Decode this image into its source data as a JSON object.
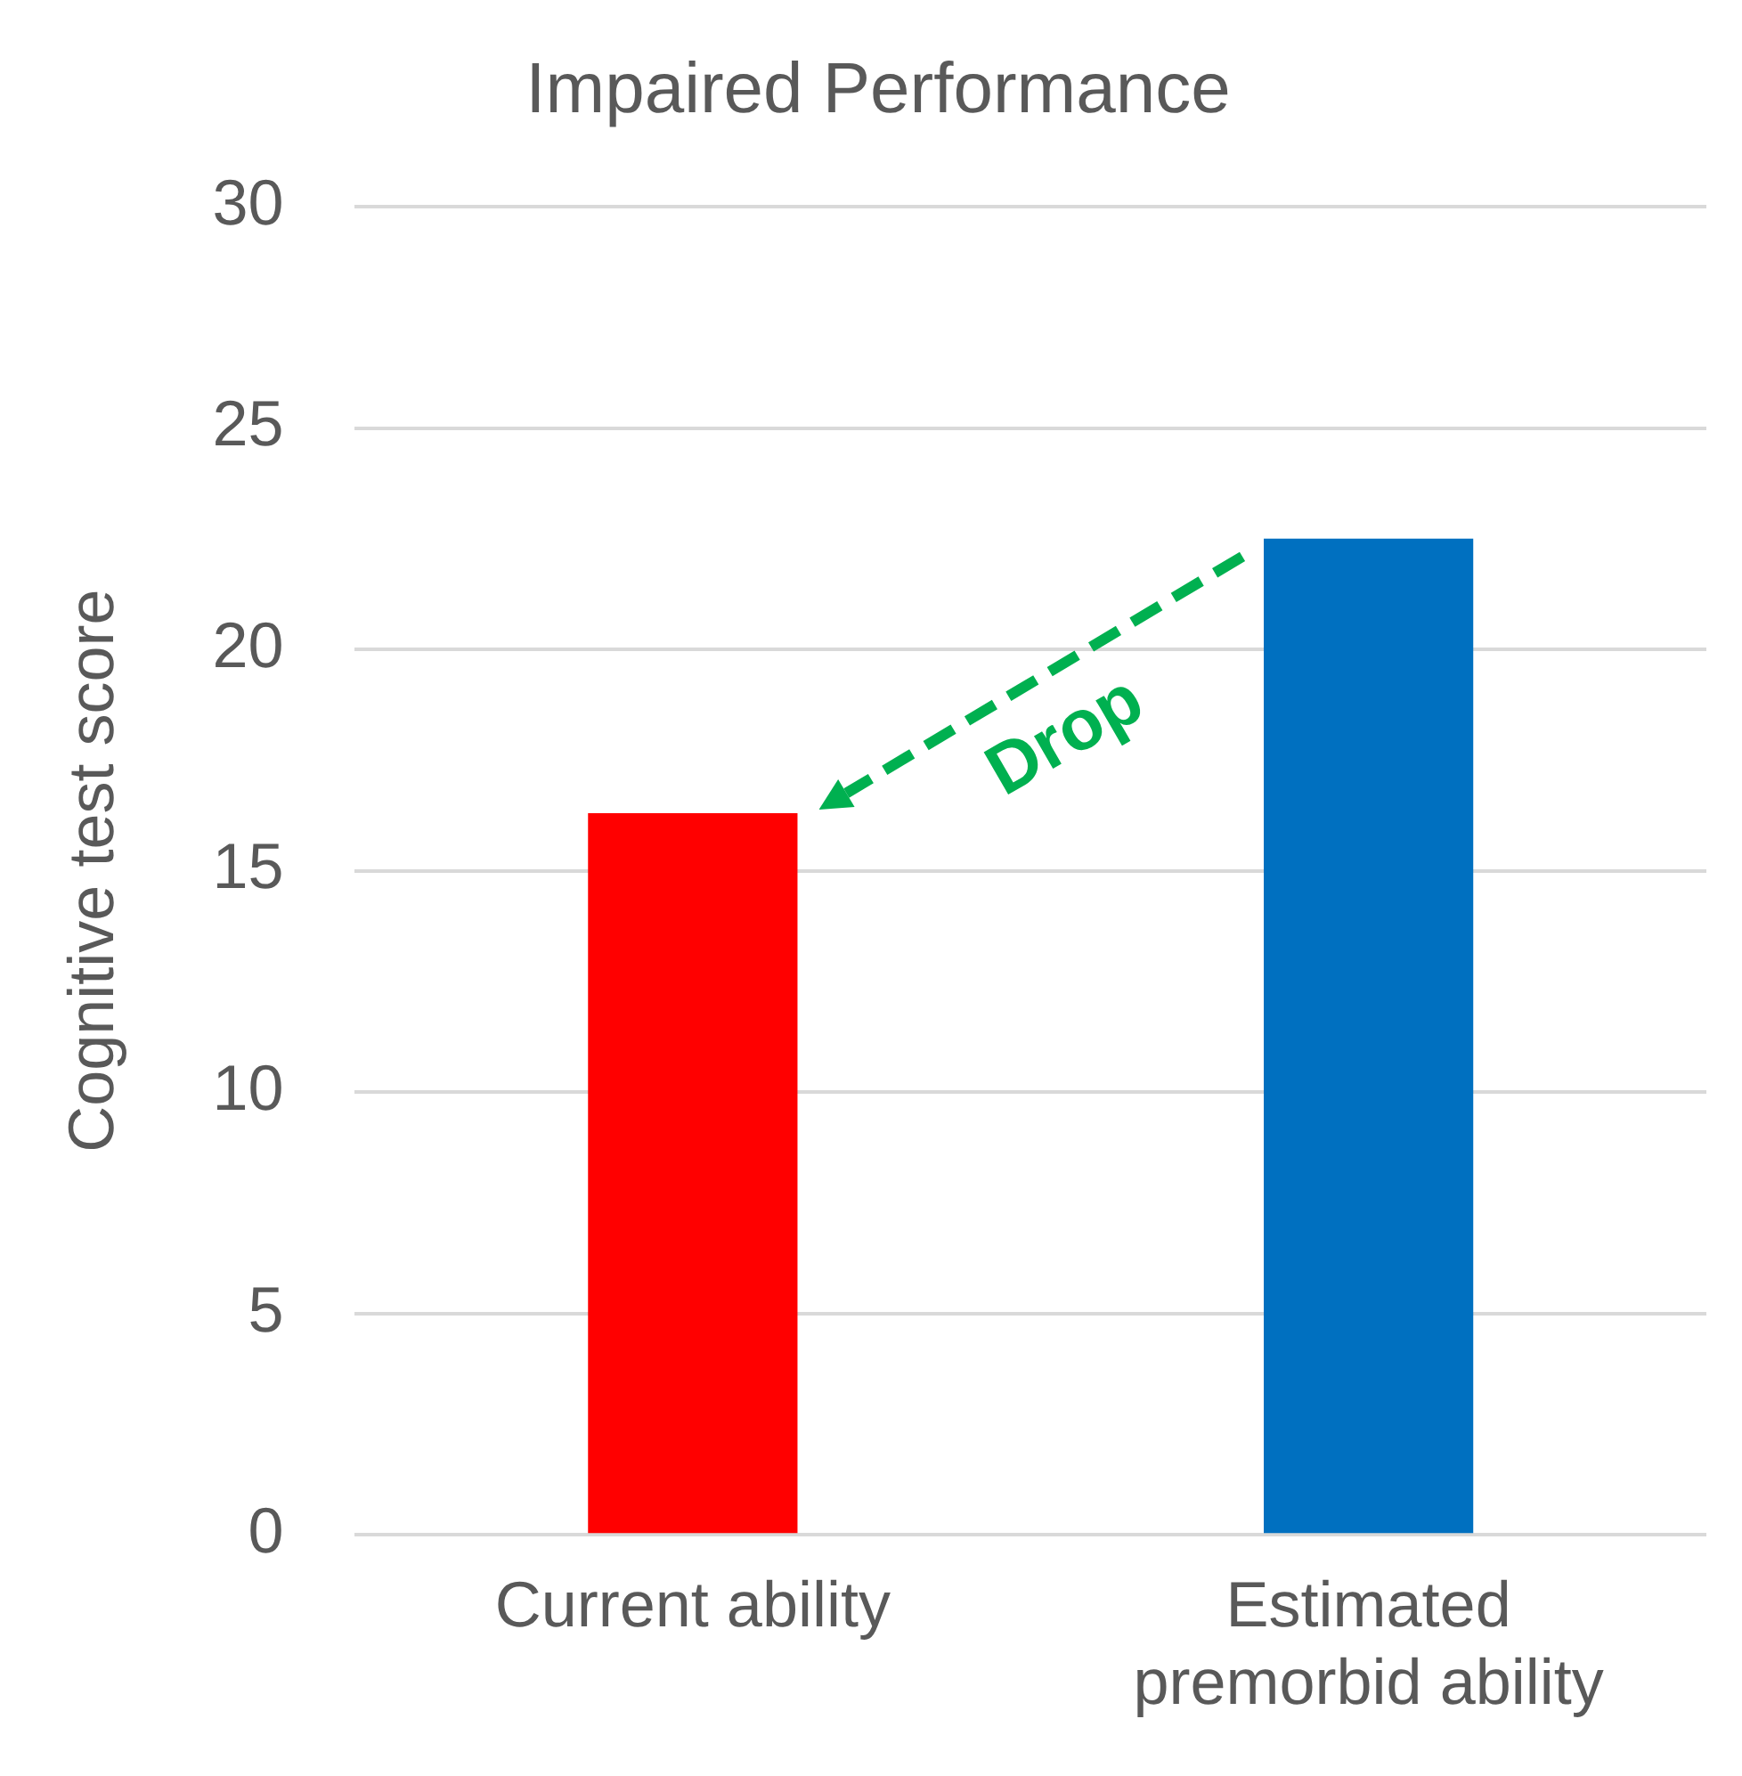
{
  "chart_data": {
    "type": "bar",
    "title": "Impaired Performance",
    "ylabel": "Cognitive test score",
    "categories": [
      "Current ability",
      "Estimated premorbid ability"
    ],
    "values": [
      16.3,
      22.5
    ],
    "colors": [
      "#ff0000",
      "#0070c0"
    ],
    "ylim": [
      0,
      30
    ],
    "yticks": [
      0,
      5,
      10,
      15,
      20,
      25,
      30
    ],
    "grid": "y",
    "annotations": [
      "Drop"
    ]
  }
}
